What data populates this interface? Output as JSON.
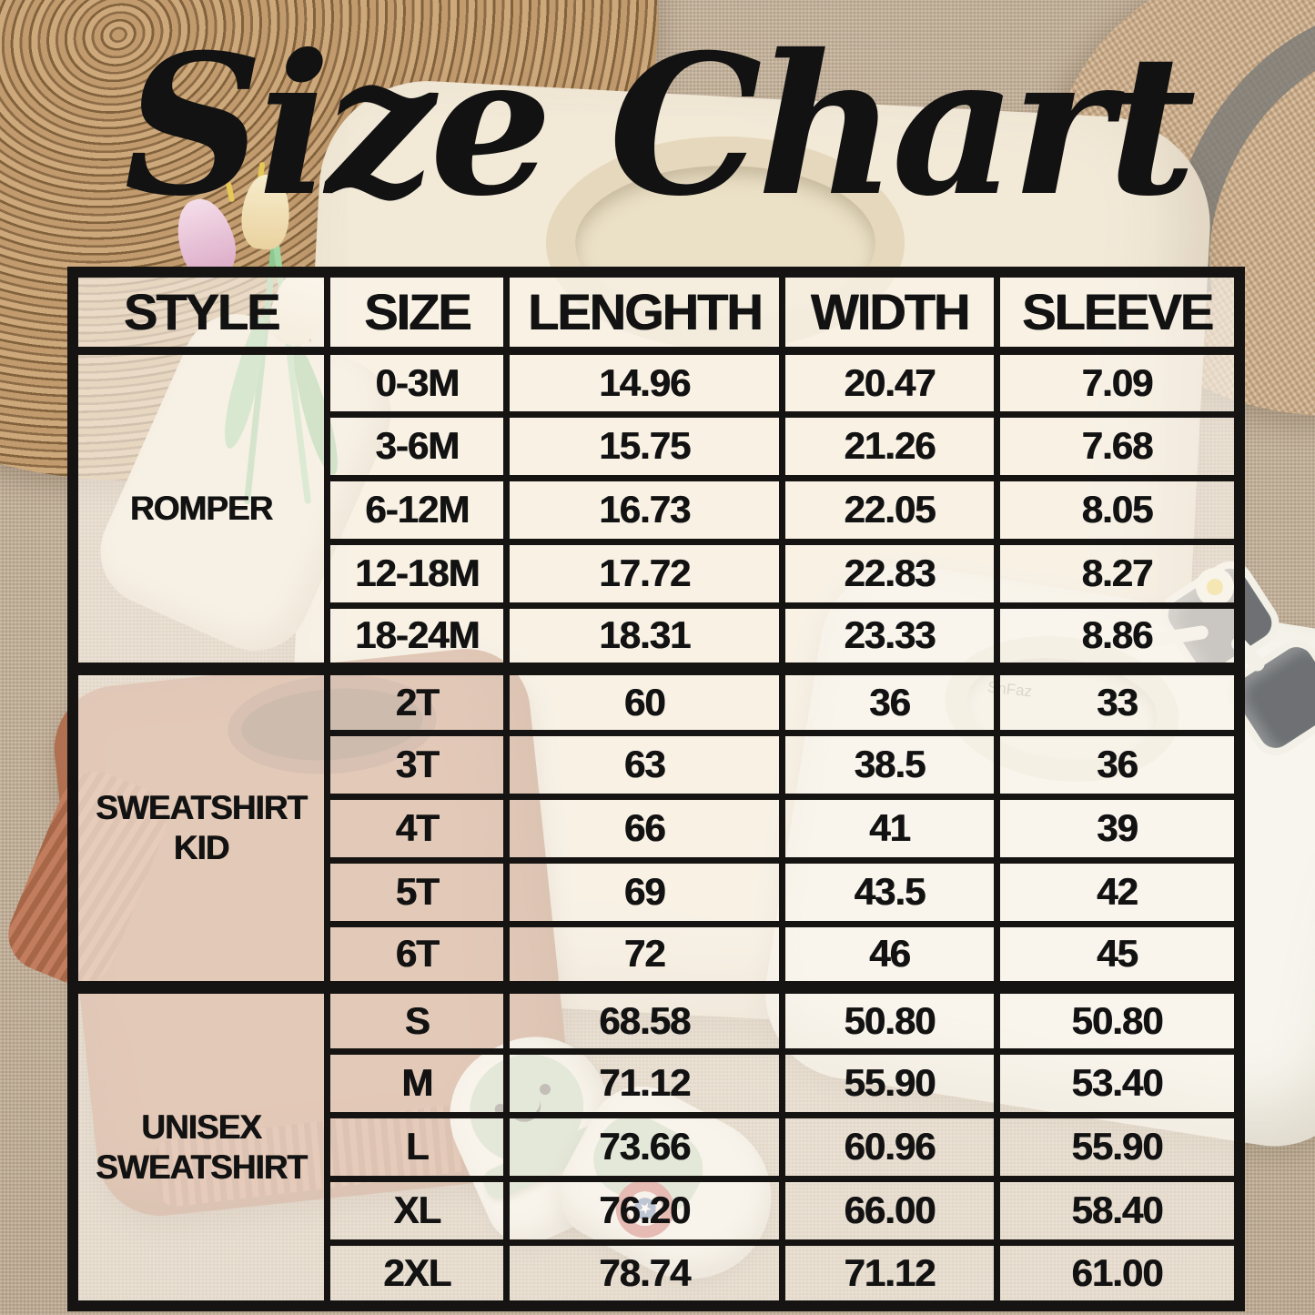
{
  "title": "Size Chart",
  "table": {
    "headers": [
      "STYLE",
      "SIZE",
      "LENGHTH",
      "WIDTH",
      "SLEEVE"
    ],
    "groups": [
      {
        "style": "ROMPER",
        "rows": [
          {
            "size": "0-3M",
            "length": "14.96",
            "width": "20.47",
            "sleeve": "7.09"
          },
          {
            "size": "3-6M",
            "length": "15.75",
            "width": "21.26",
            "sleeve": "7.68"
          },
          {
            "size": "6-12M",
            "length": "16.73",
            "width": "22.05",
            "sleeve": "8.05"
          },
          {
            "size": "12-18M",
            "length": "17.72",
            "width": "22.83",
            "sleeve": "8.27"
          },
          {
            "size": "18-24M",
            "length": "18.31",
            "width": "23.33",
            "sleeve": "8.86"
          }
        ]
      },
      {
        "style": "SWEATSHIRT KID",
        "rows": [
          {
            "size": "2T",
            "length": "60",
            "width": "36",
            "sleeve": "33"
          },
          {
            "size": "3T",
            "length": "63",
            "width": "38.5",
            "sleeve": "36"
          },
          {
            "size": "4T",
            "length": "66",
            "width": "41",
            "sleeve": "39"
          },
          {
            "size": "5T",
            "length": "69",
            "width": "43.5",
            "sleeve": "42"
          },
          {
            "size": "6T",
            "length": "72",
            "width": "46",
            "sleeve": "45"
          }
        ]
      },
      {
        "style": "UNISEX SWEATSHIRT",
        "rows": [
          {
            "size": "S",
            "length": "68.58",
            "width": "50.80",
            "sleeve": "50.80"
          },
          {
            "size": "M",
            "length": "71.12",
            "width": "55.90",
            "sleeve": "53.40"
          },
          {
            "size": "L",
            "length": "73.66",
            "width": "60.96",
            "sleeve": "55.90"
          },
          {
            "size": "XL",
            "length": "76.20",
            "width": "66.00",
            "sleeve": "58.40"
          },
          {
            "size": "2XL",
            "length": "78.74",
            "width": "71.12",
            "sleeve": "61.00"
          }
        ]
      }
    ]
  },
  "chart_data": {
    "type": "table",
    "title": "Size Chart",
    "columns": [
      "STYLE",
      "SIZE",
      "LENGHTH",
      "WIDTH",
      "SLEEVE"
    ],
    "rows": [
      [
        "ROMPER",
        "0-3M",
        14.96,
        20.47,
        7.09
      ],
      [
        "ROMPER",
        "3-6M",
        15.75,
        21.26,
        7.68
      ],
      [
        "ROMPER",
        "6-12M",
        16.73,
        22.05,
        8.05
      ],
      [
        "ROMPER",
        "12-18M",
        17.72,
        22.83,
        8.27
      ],
      [
        "ROMPER",
        "18-24M",
        18.31,
        23.33,
        8.86
      ],
      [
        "SWEATSHIRT KID",
        "2T",
        60,
        36,
        33
      ],
      [
        "SWEATSHIRT KID",
        "3T",
        63,
        38.5,
        36
      ],
      [
        "SWEATSHIRT KID",
        "4T",
        66,
        41,
        39
      ],
      [
        "SWEATSHIRT KID",
        "5T",
        69,
        43.5,
        42
      ],
      [
        "SWEATSHIRT KID",
        "6T",
        72,
        46,
        45
      ],
      [
        "UNISEX SWEATSHIRT",
        "S",
        68.58,
        50.8,
        50.8
      ],
      [
        "UNISEX SWEATSHIRT",
        "M",
        71.12,
        55.9,
        53.4
      ],
      [
        "UNISEX SWEATSHIRT",
        "L",
        73.66,
        60.96,
        55.9
      ],
      [
        "UNISEX SWEATSHIRT",
        "XL",
        76.2,
        66.0,
        58.4
      ],
      [
        "UNISEX SWEATSHIRT",
        "2XL",
        78.74,
        71.12,
        61.0
      ]
    ]
  },
  "photo": {
    "collar_tag": "SnFaz",
    "shield_star": "★"
  },
  "colors": {
    "burlap": "#c2ab90",
    "placemat": "#a8805",
    " ": "",
    "placemat_tan": "#a8805a",
    "straw_hat": "#cfae8a",
    "cream_sweatshirt": "#f1e8d6",
    "rust_sweatshirt": "#b16b49",
    "white_sweatshirt": "#f7f5ee",
    "sage_shoe_accent": "#b5cdb0",
    "table_line": "#161412",
    "cell_fill": "rgba(250,245,235,0.66)",
    "text": "#121212"
  }
}
